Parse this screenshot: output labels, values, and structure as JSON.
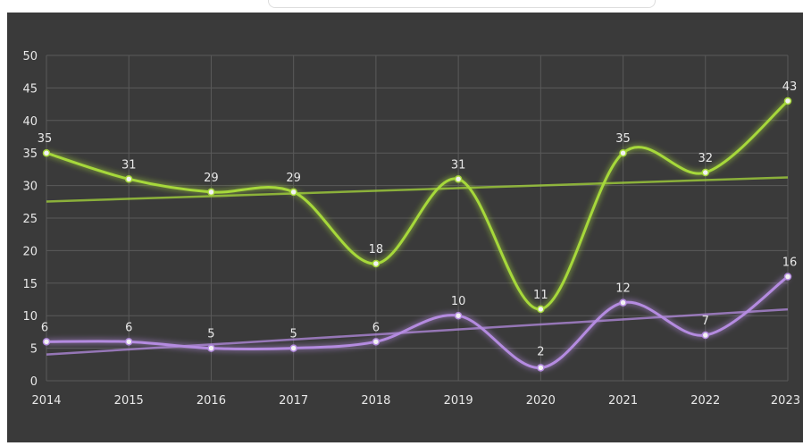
{
  "chart_data": {
    "type": "line",
    "x": [
      "2014",
      "2015",
      "2016",
      "2017",
      "2018",
      "2019",
      "2020",
      "2021",
      "2022",
      "2023"
    ],
    "series": [
      {
        "values": [
          35,
          31,
          29,
          29,
          18,
          31,
          11,
          35,
          32,
          43
        ],
        "color": "#a6d83a",
        "trendline": true
      },
      {
        "values": [
          6,
          6,
          5,
          5,
          6,
          10,
          2,
          12,
          7,
          16
        ],
        "color": "#b48be0",
        "trendline": true
      }
    ],
    "ylim": [
      0,
      50
    ],
    "yticks": [
      "0",
      "5",
      "10",
      "15",
      "20",
      "25",
      "30",
      "35",
      "40",
      "45",
      "50"
    ],
    "grid": true,
    "legend": "none",
    "data_labels": true,
    "background": "#3a3a3a",
    "grid_color": "#5a5a5a",
    "label_color": "#e8e8e8"
  }
}
